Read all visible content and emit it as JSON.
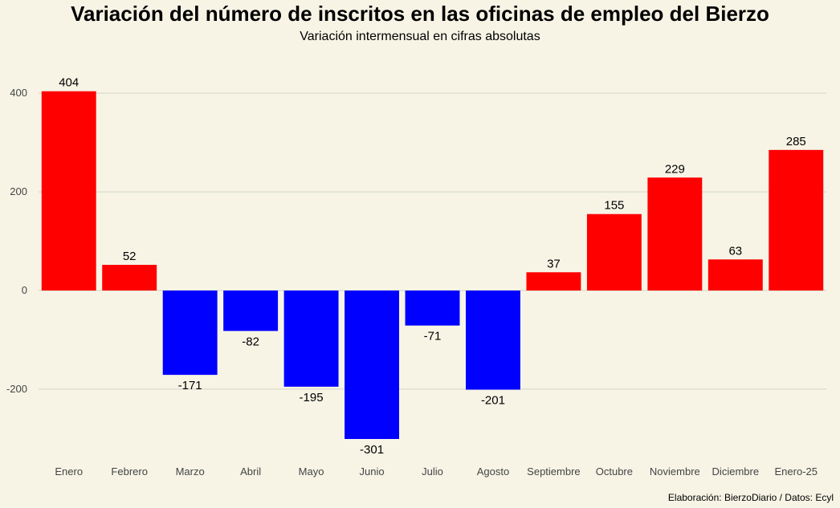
{
  "chart_data": {
    "type": "bar",
    "title": "Variación del número de inscritos en las oficinas de empleo del Bierzo",
    "subtitle": "Variación intermensual en cifras absolutas",
    "xlabel": "",
    "ylabel": "",
    "categories": [
      "Enero",
      "Febrero",
      "Marzo",
      "Abril",
      "Mayo",
      "Junio",
      "Julio",
      "Agosto",
      "Septiembre",
      "Octubre",
      "Noviembre",
      "Diciembre",
      "Enero-25"
    ],
    "values": [
      404,
      52,
      -171,
      -82,
      -195,
      -301,
      -71,
      -201,
      37,
      155,
      229,
      63,
      285
    ],
    "ylim": [
      -350,
      450
    ],
    "yticks": [
      -200,
      0,
      200,
      400
    ],
    "grid": "horizontal",
    "colors": {
      "positive": "#ff0000",
      "negative": "#0000ff",
      "background": "#f7f4e6",
      "grid": "#cfd6c7"
    },
    "caption": "Elaboración: BierzoDiario / Datos: Ecyl"
  }
}
